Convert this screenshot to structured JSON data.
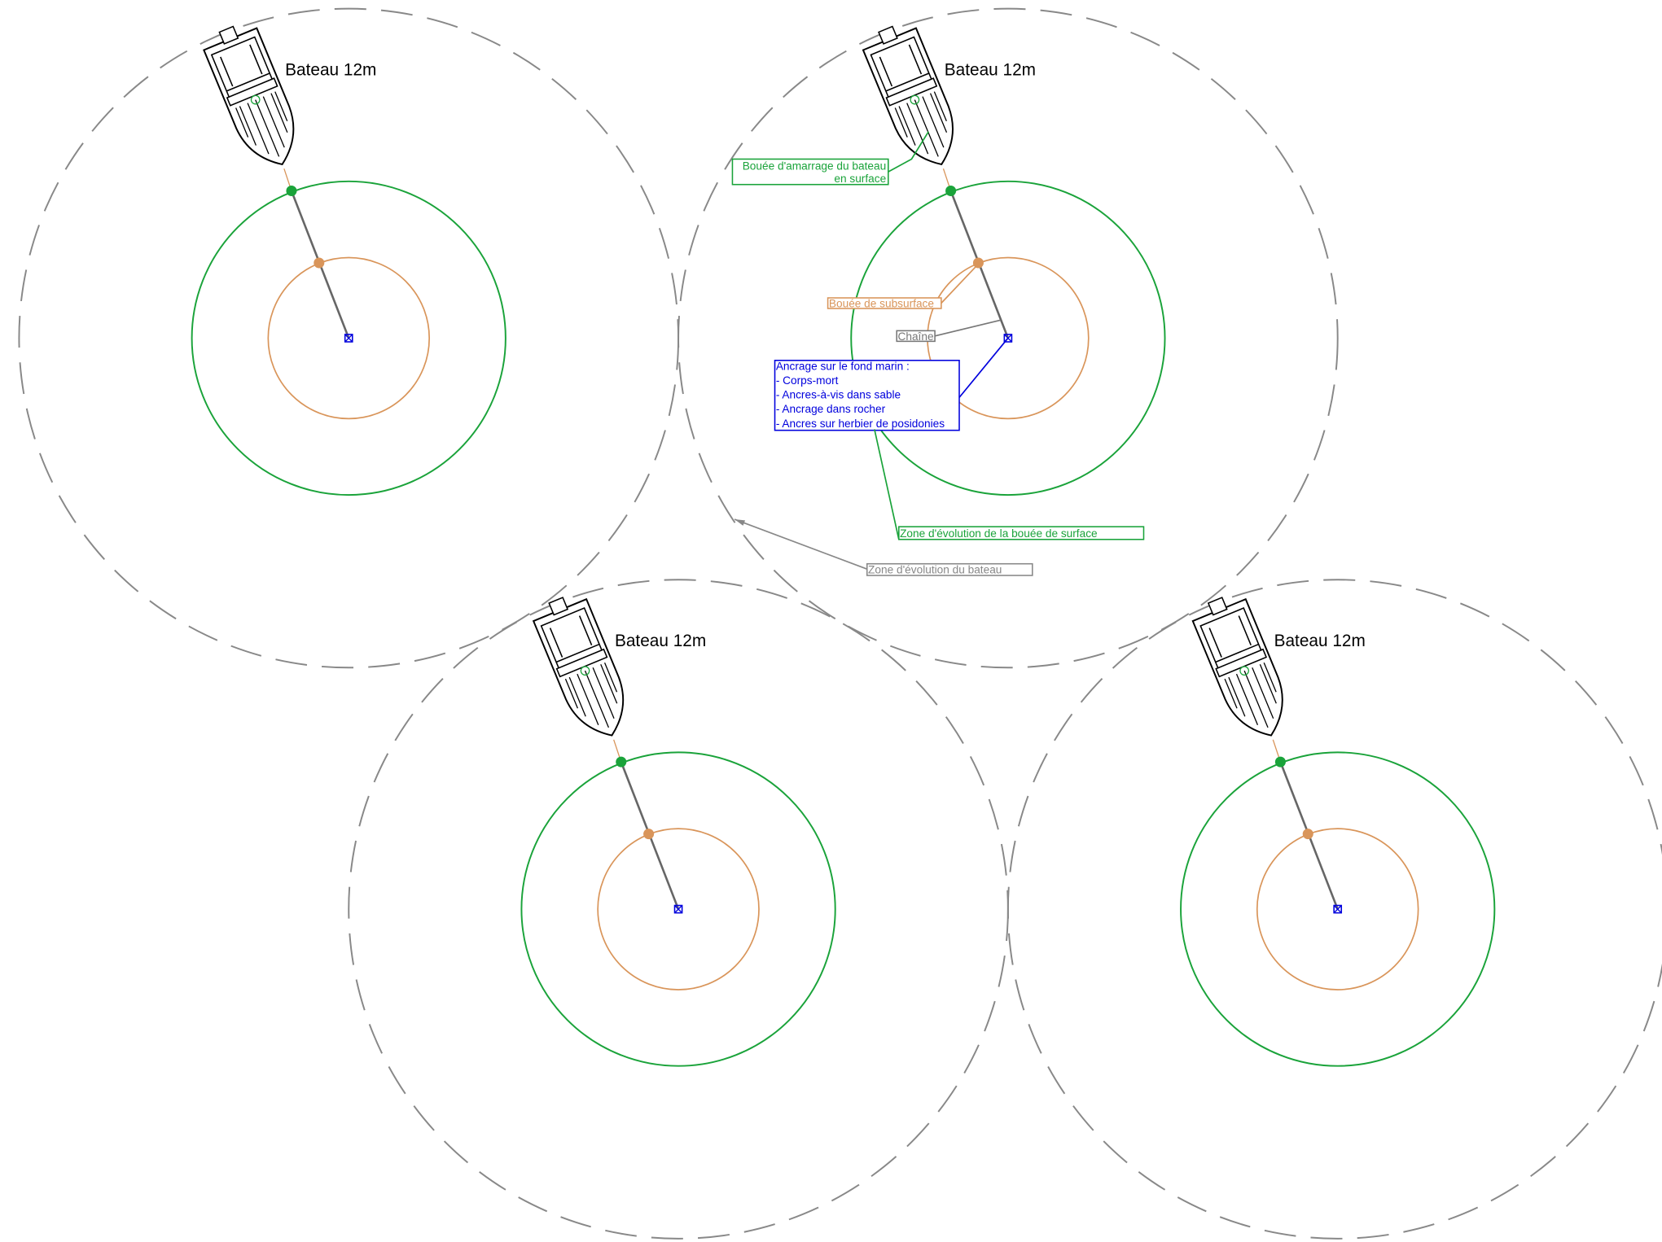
{
  "moorings": [
    {
      "label": "Bateau 12m"
    },
    {
      "label": "Bateau 12m"
    },
    {
      "label": "Bateau 12m"
    },
    {
      "label": "Bateau 12m"
    }
  ],
  "annotations": {
    "surface_buoy": {
      "lines": [
        "Bouée d'amarrage du bateau",
        "en surface"
      ]
    },
    "subsurface_buoy": {
      "text": "Bouée de subsurface"
    },
    "chain": {
      "text": "Chaîne"
    },
    "anchor": {
      "lines": [
        "Ancrage sur le fond marin :",
        "- Corps-mort",
        "- Ancres-à-vis dans sable",
        "- Ancrage dans rocher",
        "- Ancres sur herbier de posidonies"
      ]
    },
    "buoy_zone": {
      "text": "Zone d'évolution de la bouée de surface"
    },
    "boat_zone": {
      "text": "Zone d'évolution du bateau"
    }
  }
}
